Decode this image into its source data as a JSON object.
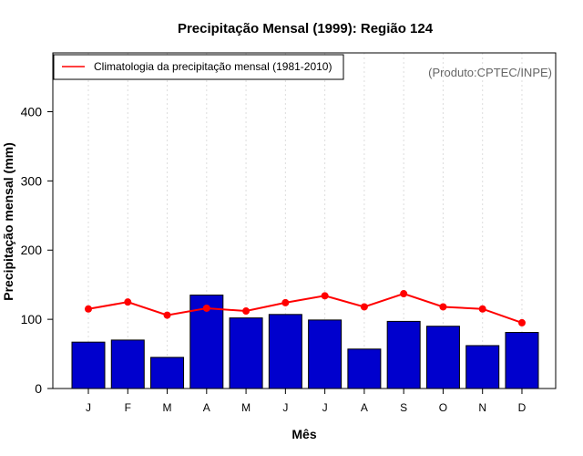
{
  "chart_data": {
    "type": "bar",
    "title": "Precipitação Mensal (1999): Região 124",
    "xlabel": "Mês",
    "ylabel": "Precipitação mensal (mm)",
    "ylim": [
      0,
      485
    ],
    "yticks": [
      0,
      100,
      200,
      300,
      400
    ],
    "grid": "vertical dotted",
    "categories": [
      "J",
      "F",
      "M",
      "A",
      "M",
      "J",
      "J",
      "A",
      "S",
      "O",
      "N",
      "D"
    ],
    "series": [
      {
        "name": "Precipitação mensal (1999)",
        "kind": "bar",
        "color": "#0000CD",
        "values": [
          67,
          70,
          45,
          135,
          102,
          107,
          99,
          57,
          97,
          90,
          62,
          81
        ]
      },
      {
        "name": "Climatologia da precipitação mensal (1981-2010)",
        "kind": "line",
        "color": "#FF0000",
        "values": [
          115,
          125,
          106,
          116,
          112,
          124,
          134,
          118,
          137,
          118,
          115,
          95
        ]
      }
    ],
    "legend": {
      "position": "top-left",
      "entries": [
        "Climatologia da precipitação mensal (1981-2010)"
      ]
    },
    "annotation": "(Produto:CPTEC/INPE)"
  }
}
